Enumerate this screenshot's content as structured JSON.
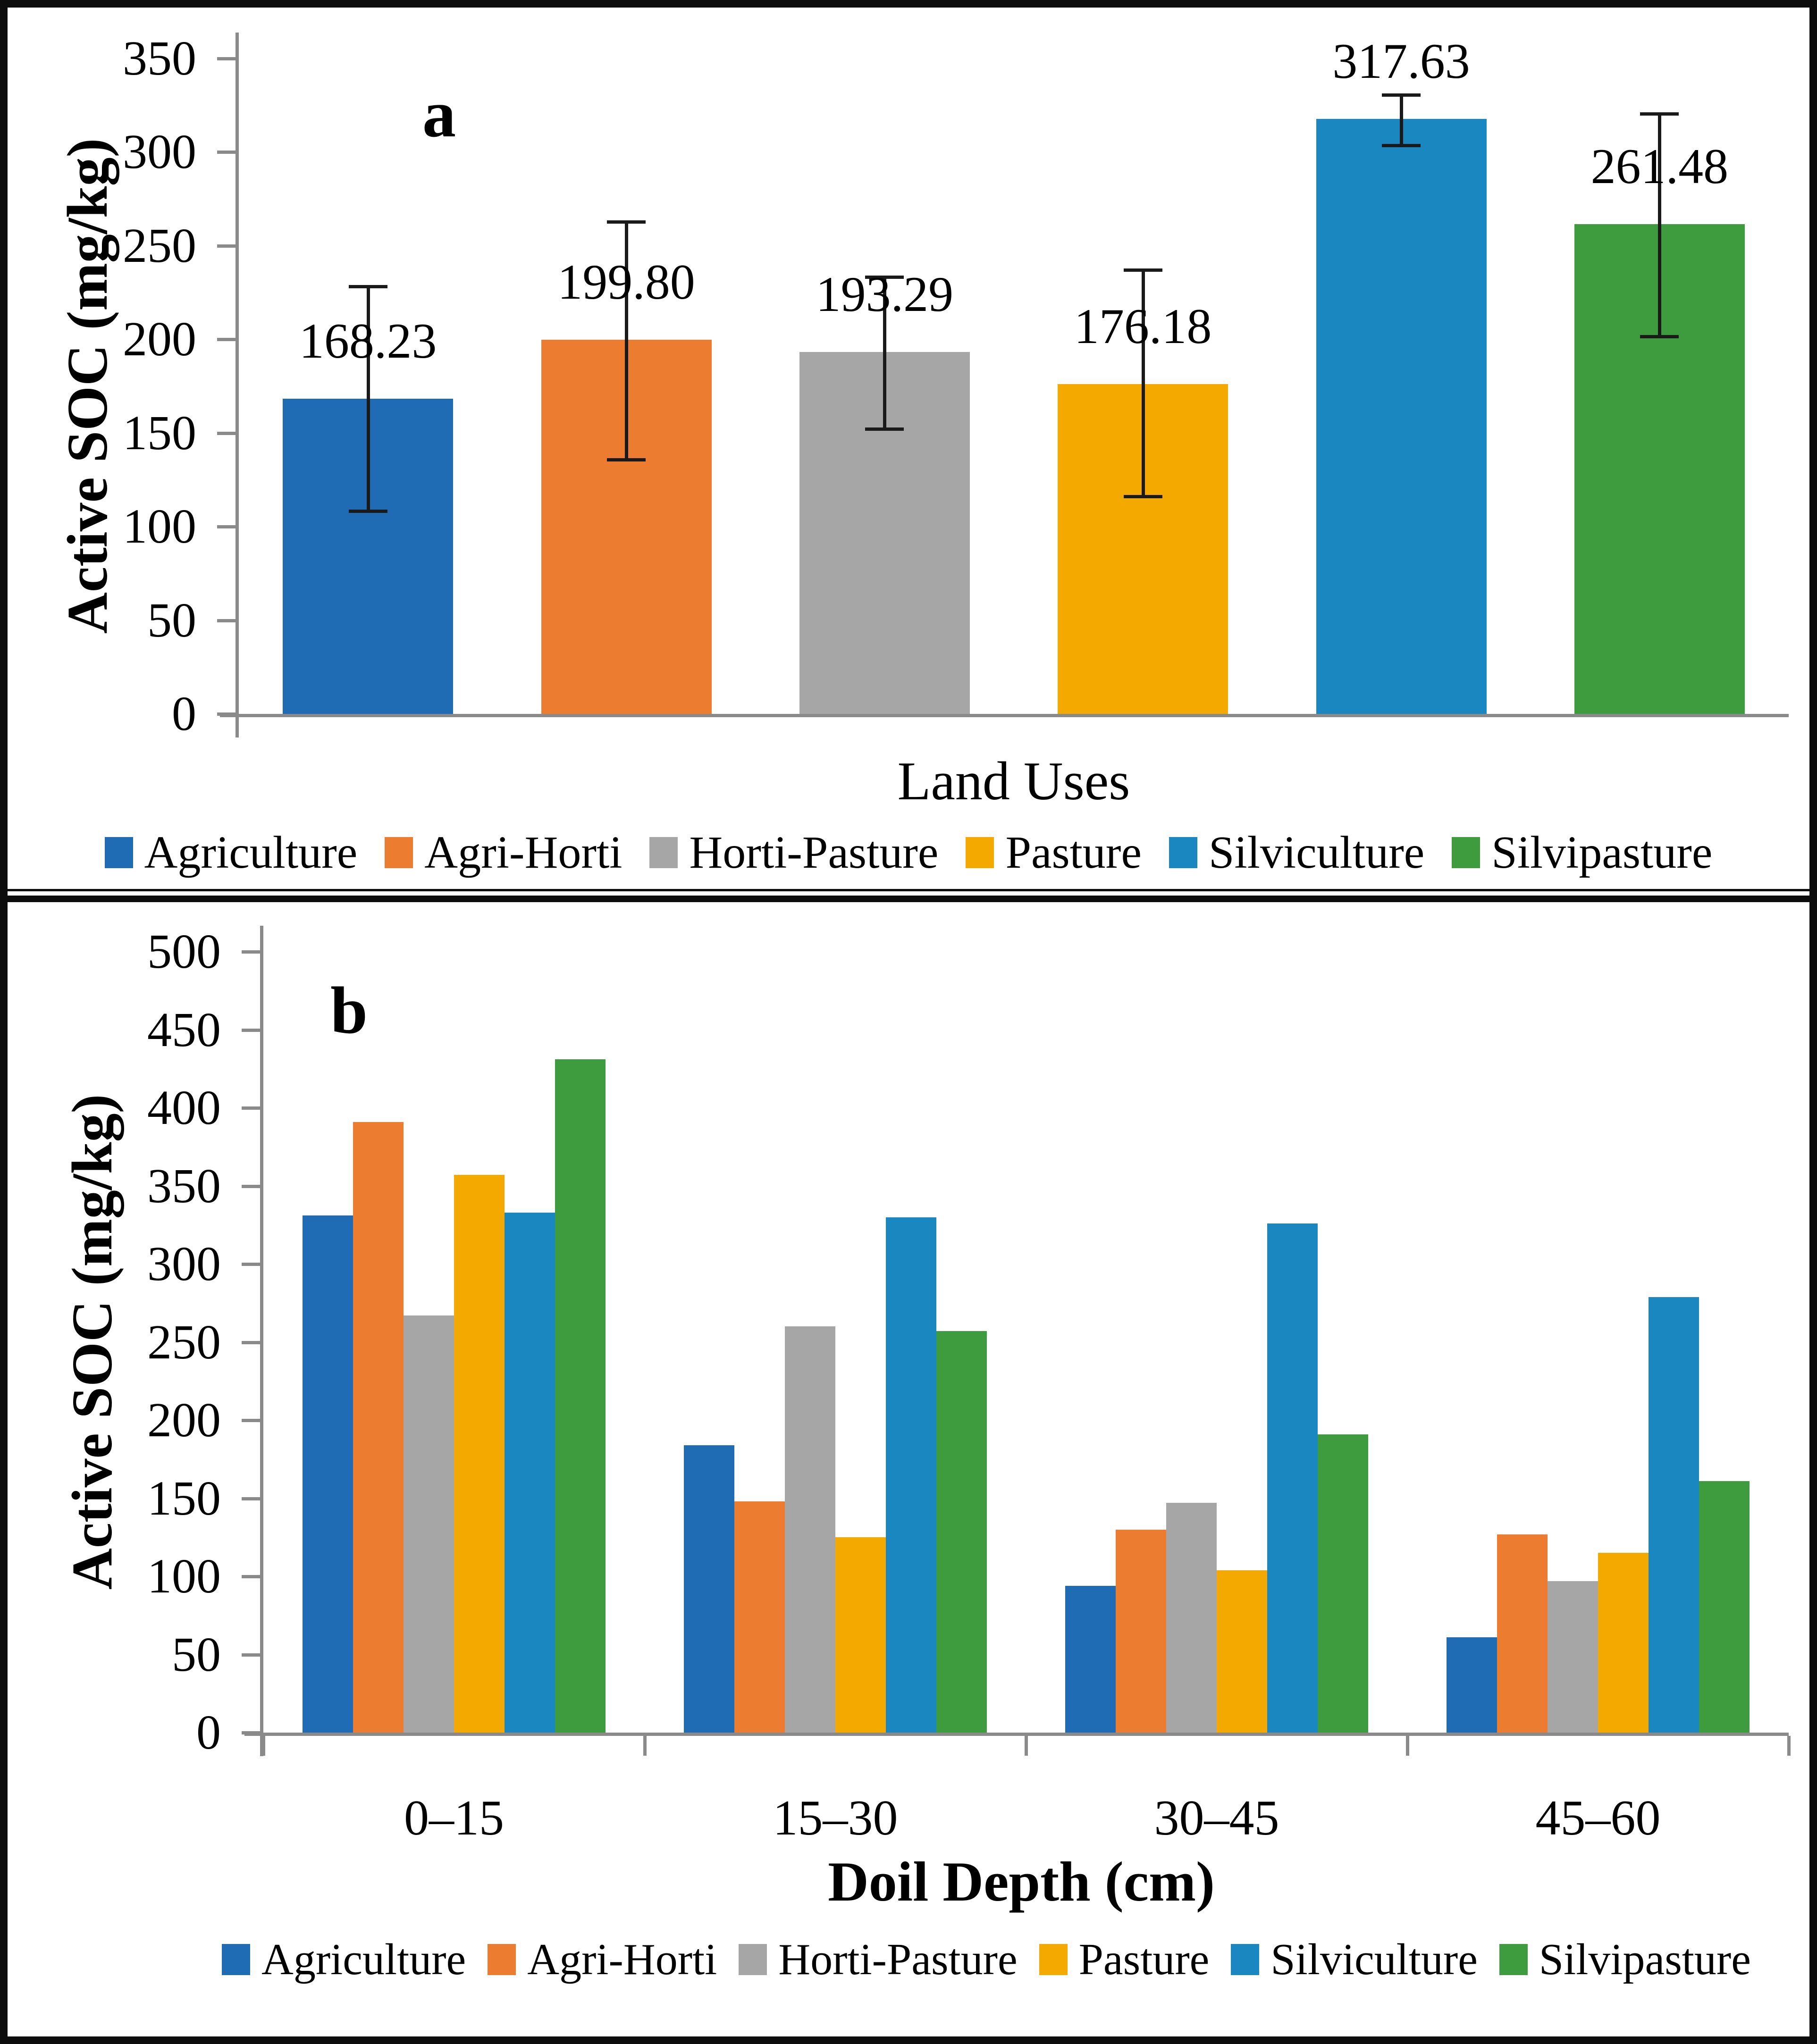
{
  "figure": {
    "panel_count": 2,
    "border_color": "#0d0d0d",
    "axis_color": "#8a8a8a",
    "error_bar_color": "#1a1a1a"
  },
  "chart_data": [
    {
      "type": "bar",
      "panel_label": "a",
      "title": "",
      "xlabel": "Land Uses",
      "ylabel": "Active SOC (mg/kg)",
      "ylim": [
        0,
        350
      ],
      "ytick_step": 50,
      "grid": false,
      "legend_position": "bottom",
      "categories": [
        "Agriculture",
        "Agri-Horti",
        "Horti-Pasture",
        "Pasture",
        "Silviculture",
        "Silvipasture"
      ],
      "values": [
        168.23,
        199.8,
        193.29,
        176.18,
        317.63,
        261.48
      ],
      "data_labels": [
        "168.23",
        "199.80",
        "193.29",
        "176.18",
        "317.63",
        "261.48"
      ],
      "error_up": [
        60,
        63,
        40,
        61,
        13,
        59
      ],
      "error_down": [
        60,
        64,
        41,
        60,
        14,
        60
      ],
      "colors": [
        "#1F6CB5",
        "#EC7C30",
        "#A6A6A6",
        "#F3A900",
        "#1B87C1",
        "#3E9B3E"
      ]
    },
    {
      "type": "bar",
      "panel_label": "b",
      "title": "",
      "xlabel": "Doil Depth (cm)",
      "ylabel": "Active SOC (mg/kg)",
      "ylim": [
        0,
        500
      ],
      "ytick_step": 50,
      "grid": false,
      "legend_position": "bottom",
      "categories": [
        "0–15",
        "15–30",
        "30–45",
        "45–60"
      ],
      "series": [
        {
          "name": "Agriculture",
          "color": "#1F6CB5",
          "values": [
            331,
            184,
            94,
            61
          ]
        },
        {
          "name": "Agri-Horti",
          "color": "#EC7C30",
          "values": [
            391,
            148,
            130,
            127
          ]
        },
        {
          "name": "Horti-Pasture",
          "color": "#A6A6A6",
          "values": [
            267,
            260,
            147,
            97
          ]
        },
        {
          "name": "Pasture",
          "color": "#F3A900",
          "values": [
            357,
            125,
            104,
            115
          ]
        },
        {
          "name": "Silviculture",
          "color": "#1B87C1",
          "values": [
            333,
            330,
            326,
            279
          ]
        },
        {
          "name": "Silvipasture",
          "color": "#3E9B3E",
          "values": [
            431,
            257,
            191,
            161
          ]
        }
      ]
    }
  ]
}
